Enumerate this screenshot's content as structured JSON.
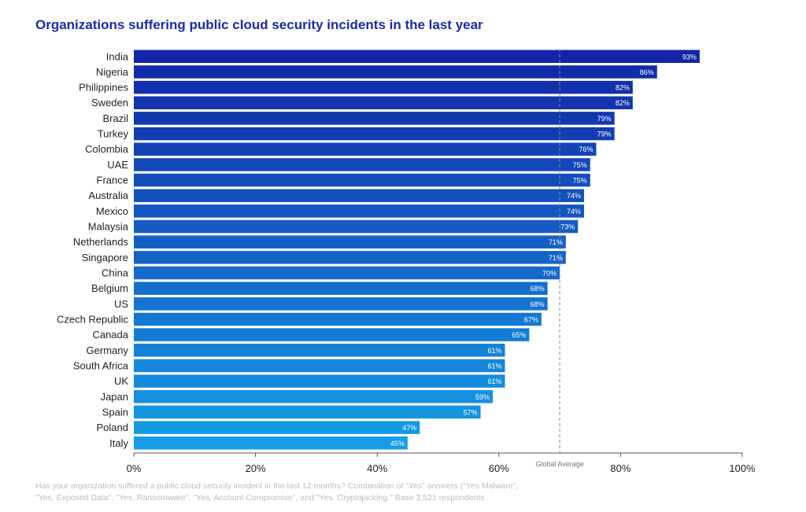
{
  "title": "Organizations suffering public cloud security incidents in the last year",
  "footnote": {
    "line1": "Has your organization suffered a public cloud security incident in the last 12 months? Combination of \"Yes\" answers (\"Yes Malware\",",
    "line2": "\"Yes, Exposed Data\", \"Yes, Ransomware\", \"Yes, Account Compromise\", and \"Yes, Cryptojacking.\" Base 3,521 respondents"
  },
  "chart_data": {
    "type": "bar",
    "orientation": "horizontal",
    "title": "Organizations suffering public cloud security incidents in the last year",
    "categories": [
      "India",
      "Nigeria",
      "Philippines",
      "Sweden",
      "Brazil",
      "Turkey",
      "Colombia",
      "UAE",
      "France",
      "Australia",
      "Mexico",
      "Malaysia",
      "Netherlands",
      "Singapore",
      "China",
      "Belgium",
      "US",
      "Czech Republic",
      "Canada",
      "Germany",
      "South Africa",
      "UK",
      "Japan",
      "Spain",
      "Poland",
      "Italy"
    ],
    "values": [
      93,
      86,
      82,
      82,
      79,
      79,
      76,
      75,
      75,
      74,
      74,
      73,
      71,
      71,
      70,
      68,
      68,
      67,
      65,
      61,
      61,
      61,
      59,
      57,
      47,
      45
    ],
    "data_labels": [
      "93%",
      "86%",
      "82%",
      "82%",
      "79%",
      "79%",
      "76%",
      "75%",
      "75%",
      "74%",
      "74%",
      "73%",
      "71%",
      "71%",
      "70%",
      "68%",
      "68%",
      "67%",
      "65%",
      "61%",
      "61%",
      "61%",
      "59%",
      "57%",
      "47%",
      "45%"
    ],
    "xlim": [
      0,
      100
    ],
    "x_ticks": [
      0,
      20,
      40,
      60,
      80,
      100
    ],
    "x_tick_labels": [
      "0%",
      "20%",
      "40%",
      "60%",
      "80%",
      "100%"
    ],
    "reference_line": {
      "value": 70,
      "label": "Global Average",
      "style": "dashed"
    },
    "colors": {
      "bar_top": "#1326a6",
      "bar_bottom": "#159ee6",
      "title": "#1b2aa8",
      "label_text": "#ffffff",
      "axis": "#555555",
      "ref_line": "#888888"
    },
    "grid": false
  }
}
